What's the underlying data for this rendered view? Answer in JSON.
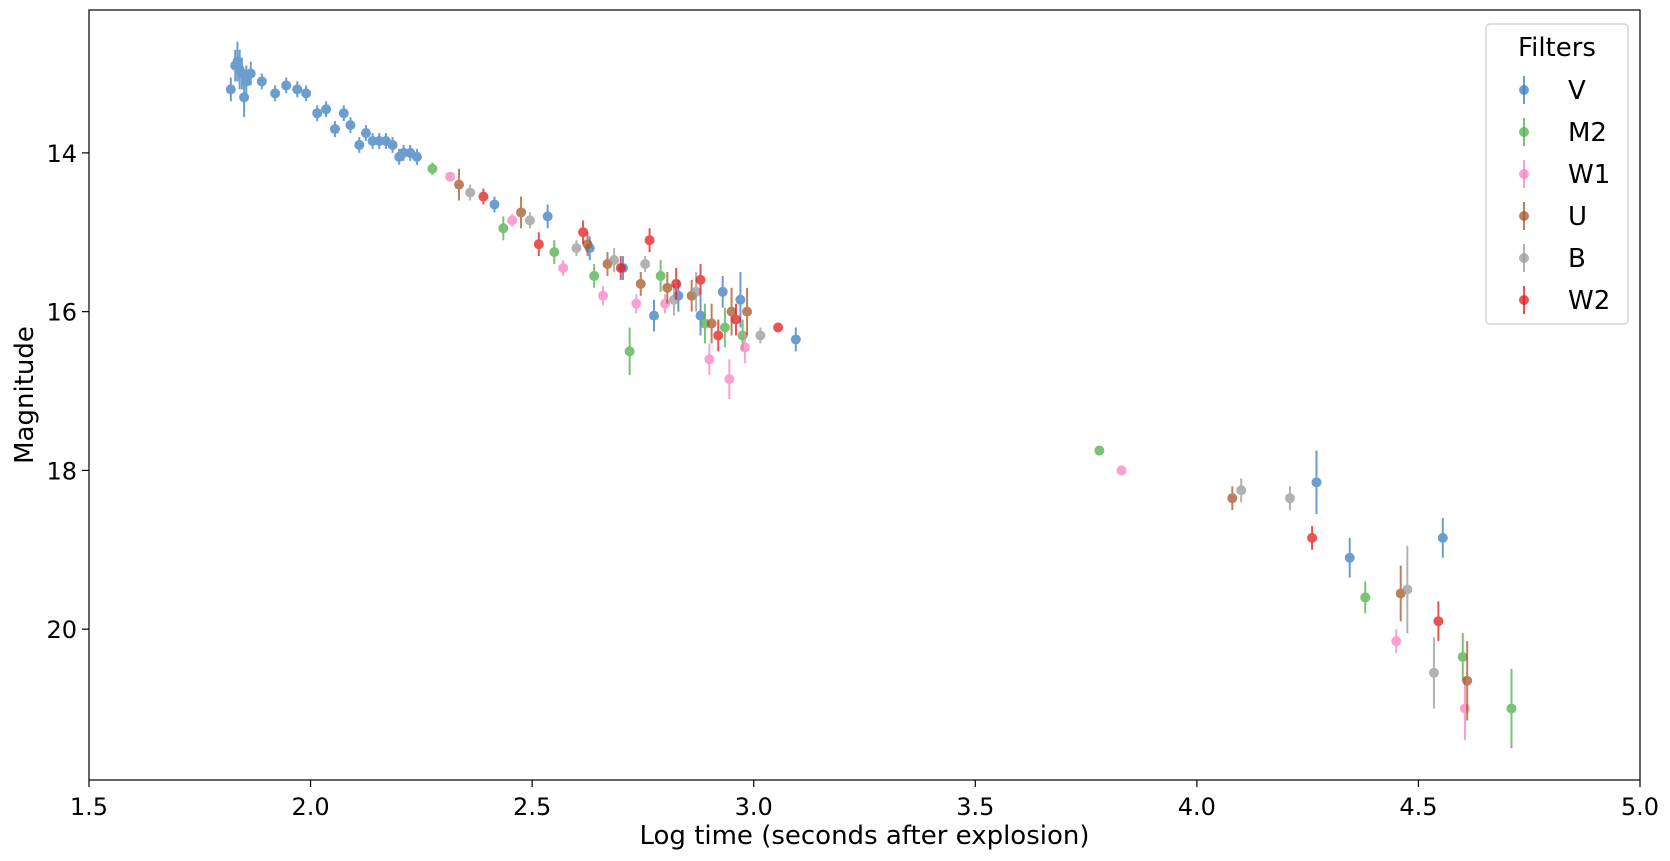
{
  "chart_data": {
    "type": "scatter",
    "title": "",
    "xlabel": "Log time (seconds after explosion)",
    "ylabel": "Magnitude",
    "xlim": [
      1.5,
      5.0
    ],
    "ylim": [
      21.9,
      12.2
    ],
    "y_inverted": true,
    "xticks": [
      1.5,
      2.0,
      2.5,
      3.0,
      3.5,
      4.0,
      4.5,
      5.0
    ],
    "xtick_labels": [
      "1.5",
      "2.0",
      "2.5",
      "3.0",
      "3.5",
      "4.0",
      "4.5",
      "5.0"
    ],
    "yticks": [
      14,
      16,
      18,
      20
    ],
    "ytick_labels": [
      "14",
      "16",
      "18",
      "20"
    ],
    "grid": false,
    "error_bars": true,
    "legend": {
      "title": "Filters",
      "position": "top-right"
    },
    "series": [
      {
        "name": "V",
        "color": "#3a7dbf",
        "points": [
          [
            1.82,
            13.2,
            0.15
          ],
          [
            1.83,
            12.9,
            0.2
          ],
          [
            1.835,
            12.85,
            0.25
          ],
          [
            1.84,
            12.95,
            0.25
          ],
          [
            1.845,
            13.0,
            0.2
          ],
          [
            1.85,
            13.3,
            0.25
          ],
          [
            1.855,
            13.1,
            0.2
          ],
          [
            1.865,
            13.0,
            0.15
          ],
          [
            1.89,
            13.1,
            0.1
          ],
          [
            1.92,
            13.25,
            0.1
          ],
          [
            1.945,
            13.15,
            0.1
          ],
          [
            1.97,
            13.2,
            0.1
          ],
          [
            1.99,
            13.25,
            0.1
          ],
          [
            2.015,
            13.5,
            0.1
          ],
          [
            2.035,
            13.45,
            0.1
          ],
          [
            2.055,
            13.7,
            0.1
          ],
          [
            2.075,
            13.5,
            0.1
          ],
          [
            2.09,
            13.65,
            0.1
          ],
          [
            2.11,
            13.9,
            0.1
          ],
          [
            2.125,
            13.75,
            0.1
          ],
          [
            2.14,
            13.85,
            0.1
          ],
          [
            2.155,
            13.85,
            0.1
          ],
          [
            2.17,
            13.85,
            0.1
          ],
          [
            2.185,
            13.9,
            0.1
          ],
          [
            2.2,
            14.05,
            0.1
          ],
          [
            2.21,
            14.0,
            0.1
          ],
          [
            2.225,
            14.0,
            0.1
          ],
          [
            2.24,
            14.05,
            0.1
          ],
          [
            2.415,
            14.65,
            0.1
          ],
          [
            2.535,
            14.8,
            0.15
          ],
          [
            2.63,
            15.2,
            0.15
          ],
          [
            2.705,
            15.45,
            0.15
          ],
          [
            2.775,
            16.05,
            0.2
          ],
          [
            2.83,
            15.8,
            0.2
          ],
          [
            2.88,
            16.05,
            0.25
          ],
          [
            2.93,
            15.75,
            0.2
          ],
          [
            2.97,
            15.85,
            0.35
          ],
          [
            3.095,
            16.35,
            0.15
          ],
          [
            4.27,
            18.15,
            0.4
          ],
          [
            4.345,
            19.1,
            0.25
          ],
          [
            4.555,
            18.85,
            0.25
          ]
        ]
      },
      {
        "name": "M2",
        "color": "#4daf4a",
        "points": [
          [
            2.275,
            14.2,
            0.08
          ],
          [
            2.435,
            14.95,
            0.15
          ],
          [
            2.55,
            15.25,
            0.15
          ],
          [
            2.64,
            15.55,
            0.15
          ],
          [
            2.72,
            16.5,
            0.3
          ],
          [
            2.79,
            15.55,
            0.2
          ],
          [
            2.89,
            16.15,
            0.25
          ],
          [
            2.935,
            16.2,
            0.25
          ],
          [
            2.975,
            16.3,
            0.2
          ],
          [
            3.78,
            17.75,
            0.06
          ],
          [
            4.38,
            19.6,
            0.2
          ],
          [
            4.6,
            20.35,
            0.3
          ],
          [
            4.71,
            21.0,
            0.5
          ]
        ]
      },
      {
        "name": "W1",
        "color": "#f781bf",
        "points": [
          [
            2.315,
            14.3,
            0.06
          ],
          [
            2.455,
            14.85,
            0.08
          ],
          [
            2.57,
            15.45,
            0.1
          ],
          [
            2.66,
            15.8,
            0.12
          ],
          [
            2.735,
            15.9,
            0.12
          ],
          [
            2.8,
            15.9,
            0.12
          ],
          [
            2.9,
            16.6,
            0.2
          ],
          [
            2.945,
            16.85,
            0.25
          ],
          [
            2.98,
            16.45,
            0.2
          ],
          [
            3.83,
            18.0,
            0.06
          ],
          [
            4.45,
            20.15,
            0.15
          ],
          [
            4.605,
            21.0,
            0.4
          ]
        ]
      },
      {
        "name": "U",
        "color": "#a65628",
        "points": [
          [
            2.335,
            14.4,
            0.2
          ],
          [
            2.475,
            14.75,
            0.2
          ],
          [
            2.625,
            15.15,
            0.15
          ],
          [
            2.67,
            15.4,
            0.15
          ],
          [
            2.745,
            15.65,
            0.15
          ],
          [
            2.805,
            15.7,
            0.2
          ],
          [
            2.86,
            15.8,
            0.2
          ],
          [
            2.905,
            16.15,
            0.25
          ],
          [
            2.95,
            16.0,
            0.3
          ],
          [
            2.985,
            16.0,
            0.3
          ],
          [
            4.08,
            18.35,
            0.15
          ],
          [
            4.46,
            19.55,
            0.35
          ],
          [
            4.61,
            20.65,
            0.5
          ]
        ]
      },
      {
        "name": "B",
        "color": "#999999",
        "points": [
          [
            2.36,
            14.5,
            0.1
          ],
          [
            2.495,
            14.85,
            0.1
          ],
          [
            2.6,
            15.2,
            0.1
          ],
          [
            2.685,
            15.35,
            0.15
          ],
          [
            2.755,
            15.4,
            0.1
          ],
          [
            2.82,
            15.85,
            0.2
          ],
          [
            2.87,
            15.75,
            0.25
          ],
          [
            3.015,
            16.3,
            0.1
          ],
          [
            4.1,
            18.25,
            0.15
          ],
          [
            4.21,
            18.35,
            0.15
          ],
          [
            4.475,
            19.5,
            0.55
          ],
          [
            4.535,
            20.55,
            0.45
          ]
        ]
      },
      {
        "name": "W2",
        "color": "#e41a1c",
        "points": [
          [
            2.39,
            14.55,
            0.1
          ],
          [
            2.515,
            15.15,
            0.15
          ],
          [
            2.615,
            15.0,
            0.15
          ],
          [
            2.7,
            15.45,
            0.15
          ],
          [
            2.765,
            15.1,
            0.15
          ],
          [
            2.825,
            15.65,
            0.2
          ],
          [
            2.88,
            15.6,
            0.2
          ],
          [
            2.92,
            16.3,
            0.2
          ],
          [
            2.96,
            16.1,
            0.2
          ],
          [
            3.055,
            16.2,
            0.06
          ],
          [
            4.26,
            18.85,
            0.15
          ],
          [
            4.545,
            19.9,
            0.25
          ]
        ]
      }
    ]
  }
}
